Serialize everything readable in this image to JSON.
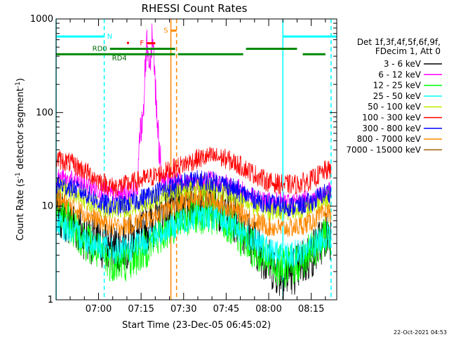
{
  "chart_data": {
    "type": "line",
    "title": "RHESSI Count Rates",
    "xlabel": "Start Time (23-Dec-05 06:45:02)",
    "ylabel": "Count Rate (s⁻¹ detector segment⁻¹)",
    "ylabel_main": "Count Rate (s",
    "ylabel_exp1": "-1",
    "ylabel_mid": " detector segment",
    "ylabel_exp2": "-1",
    "ylabel_end": ")",
    "yscale": "log",
    "xlim": [
      "06:45:02",
      "08:24:00"
    ],
    "ylim": [
      1,
      1000
    ],
    "x_ticks": [
      "07:00",
      "07:15",
      "07:30",
      "07:45",
      "08:00",
      "08:15"
    ],
    "y_ticks": [
      "1",
      "10",
      "100",
      "1000"
    ],
    "legend_header": [
      "Det 1f,3f,4f,5f,6f,9f,",
      "FDecim 1, Att 0"
    ],
    "legend_placement": "right",
    "series": [
      {
        "name": "3 - 6 keV",
        "color": "#000000",
        "x": [
          "06:45",
          "06:50",
          "06:55",
          "07:00",
          "07:05",
          "07:10",
          "07:15",
          "07:20",
          "07:25",
          "07:30",
          "07:35",
          "07:40",
          "07:45",
          "07:50",
          "07:55",
          "08:00",
          "08:05",
          "08:10",
          "08:15",
          "08:20"
        ],
        "values": [
          9,
          7,
          5,
          4,
          3.5,
          4,
          5,
          7,
          9,
          11,
          12,
          11,
          9,
          6.5,
          4,
          2.5,
          1.8,
          2.2,
          3,
          5
        ]
      },
      {
        "name": "6 - 12 keV",
        "color": "#ff00ff",
        "x": [
          "06:45",
          "06:50",
          "06:55",
          "07:00",
          "07:05",
          "07:10",
          "07:15",
          "07:20",
          "07:25",
          "07:30",
          "07:35",
          "07:40",
          "07:45",
          "07:50",
          "07:55",
          "08:00",
          "08:05",
          "08:10",
          "08:15",
          "08:20"
        ],
        "values": [
          20,
          19,
          17,
          15,
          13,
          14,
          16,
          18,
          19,
          17,
          18,
          19,
          17,
          15,
          12,
          11,
          11,
          11,
          12,
          14
        ]
      },
      {
        "name": "12 - 25 keV",
        "color": "#00ff00",
        "x": [
          "06:45",
          "06:50",
          "06:55",
          "07:00",
          "07:05",
          "07:10",
          "07:15",
          "07:20",
          "07:25",
          "07:30",
          "07:35",
          "07:40",
          "07:45",
          "07:50",
          "07:55",
          "08:00",
          "08:05",
          "08:10",
          "08:15",
          "08:20"
        ],
        "values": [
          9,
          6.5,
          4.5,
          3.2,
          2.5,
          2.6,
          3.2,
          4.5,
          6,
          7.5,
          8.5,
          8,
          6.5,
          4.8,
          3.5,
          2.6,
          2.2,
          2.4,
          3.2,
          4.8
        ]
      },
      {
        "name": "25 - 50 keV",
        "color": "#00ffff",
        "x": [
          "06:45",
          "06:50",
          "06:55",
          "07:00",
          "07:05",
          "07:10",
          "07:15",
          "07:20",
          "07:25",
          "07:30",
          "07:35",
          "07:40",
          "07:45",
          "07:50",
          "07:55",
          "08:00",
          "08:05",
          "08:10",
          "08:15",
          "08:20"
        ],
        "values": [
          6.5,
          5.5,
          4.5,
          3.8,
          3.3,
          3.4,
          4,
          4.8,
          5.8,
          7,
          8,
          7.8,
          6.8,
          5.5,
          4.2,
          3.3,
          3,
          3.1,
          3.7,
          4.8
        ]
      },
      {
        "name": "50 - 100 keV",
        "color": "#bbee00",
        "x": [
          "06:45",
          "06:50",
          "06:55",
          "07:00",
          "07:05",
          "07:10",
          "07:15",
          "07:20",
          "07:25",
          "07:30",
          "07:35",
          "07:40",
          "07:45",
          "07:50",
          "07:55",
          "08:00",
          "08:05",
          "08:10",
          "08:15",
          "08:20"
        ],
        "values": [
          16,
          14,
          12,
          10,
          9,
          9.5,
          11,
          12,
          14,
          15,
          16,
          15.5,
          14,
          12,
          10,
          9,
          9,
          9,
          10,
          12
        ]
      },
      {
        "name": "100 - 300 keV",
        "color": "#ff0000",
        "x": [
          "06:45",
          "06:50",
          "06:55",
          "07:00",
          "07:05",
          "07:10",
          "07:15",
          "07:20",
          "07:25",
          "07:30",
          "07:35",
          "07:40",
          "07:45",
          "07:50",
          "07:55",
          "08:00",
          "08:05",
          "08:10",
          "08:15",
          "08:20"
        ],
        "values": [
          32,
          29,
          24,
          19,
          16,
          17,
          19,
          21,
          24,
          28,
          32,
          34,
          32,
          27,
          22,
          18,
          17,
          17,
          19,
          24
        ]
      },
      {
        "name": "300 - 800 keV",
        "color": "#0000ff",
        "x": [
          "06:45",
          "06:50",
          "06:55",
          "07:00",
          "07:05",
          "07:10",
          "07:15",
          "07:20",
          "07:25",
          "07:30",
          "07:35",
          "07:40",
          "07:45",
          "07:50",
          "07:55",
          "08:00",
          "08:05",
          "08:10",
          "08:15",
          "08:20"
        ],
        "values": [
          17,
          16,
          14,
          11,
          10,
          10.5,
          12,
          14,
          16,
          18,
          19,
          18.5,
          17,
          14,
          12,
          10.5,
          10,
          10,
          11,
          14
        ]
      },
      {
        "name": "800 - 7000 keV",
        "color": "#ff8800",
        "x": [
          "06:45",
          "06:50",
          "06:55",
          "07:00",
          "07:05",
          "07:10",
          "07:15",
          "07:20",
          "07:25",
          "07:30",
          "07:35",
          "07:40",
          "07:45",
          "07:50",
          "07:55",
          "08:00",
          "08:05",
          "08:10",
          "08:15",
          "08:20"
        ],
        "values": [
          12,
          10,
          8.5,
          7,
          6,
          6.2,
          7,
          8,
          9.5,
          11,
          12,
          11.5,
          10,
          8.5,
          7,
          6,
          5.8,
          6,
          6.8,
          8.5
        ]
      },
      {
        "name": "7000 - 15000 keV",
        "color": "#a06000",
        "x": [],
        "values": []
      }
    ],
    "flare_spike": {
      "series": "6 - 12 keV",
      "x": [
        "07:14",
        "07:16",
        "07:17",
        "07:18",
        "07:19",
        "07:20",
        "07:21",
        "07:22"
      ],
      "values": [
        30,
        150,
        600,
        300,
        800,
        200,
        60,
        25
      ]
    },
    "segments": [
      {
        "label": "N",
        "color": "#00ffff",
        "y": 650,
        "ranges": [
          [
            "06:45:02",
            "07:02"
          ],
          [
            "08:05",
            "08:24"
          ]
        ]
      },
      {
        "label": "F",
        "color": "#ff0000",
        "y": 550,
        "ranges": [
          [
            "07:17",
            "07:20"
          ]
        ]
      },
      {
        "label": "S",
        "color": "#ff8800",
        "y": 750,
        "ranges": [
          [
            "07:25:30",
            "07:27:30"
          ]
        ]
      },
      {
        "label": "RD0",
        "color": "#008800",
        "y": 480,
        "ranges": [
          [
            "07:04",
            "07:27"
          ],
          [
            "07:52",
            "08:10"
          ]
        ]
      },
      {
        "label": "RD4",
        "color": "#008800",
        "y": 420,
        "ranges": [
          [
            "06:45:02",
            "07:27"
          ],
          [
            "07:28",
            "07:51"
          ],
          [
            "08:12",
            "08:20"
          ]
        ]
      }
    ],
    "vlines": [
      {
        "x": "06:45:02",
        "style": "solid",
        "color": "#00ffff"
      },
      {
        "x": "07:02",
        "style": "dashed",
        "color": "#00ffff"
      },
      {
        "x": "07:25:30",
        "style": "solid",
        "color": "#ff8800"
      },
      {
        "x": "07:27:30",
        "style": "dashed",
        "color": "#ff8800"
      },
      {
        "x": "08:05",
        "style": "solid",
        "color": "#00ffff"
      },
      {
        "x": "08:22",
        "style": "dashed",
        "color": "#00ffff"
      }
    ],
    "timestamp": "22-Oct-2021 04:53",
    "grid": false
  }
}
